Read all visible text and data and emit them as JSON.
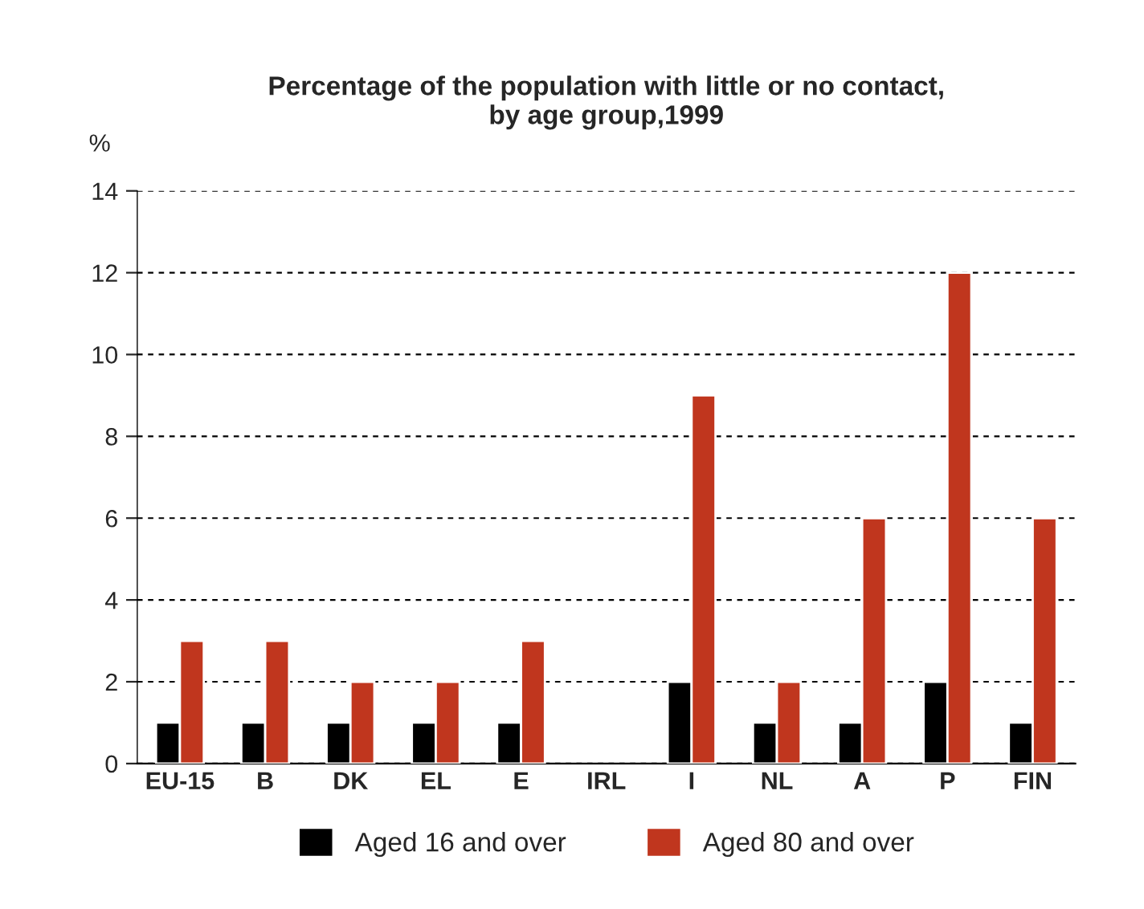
{
  "chart_data": {
    "type": "bar",
    "title": "Percentage of the population with little or no contact,\nby age group,1999",
    "ylabel": "%",
    "categories": [
      "EU-15",
      "B",
      "DK",
      "EL",
      "E",
      "IRL",
      "I",
      "NL",
      "A",
      "P",
      "FIN"
    ],
    "series": [
      {
        "name": "Aged 16 and over",
        "color": "#000000",
        "values": [
          1,
          1,
          1,
          1,
          1,
          null,
          2,
          1,
          1,
          2,
          1
        ]
      },
      {
        "name": "Aged 80 and over",
        "color": "#c0361e",
        "values": [
          3,
          3,
          2,
          2,
          3,
          null,
          9,
          2,
          6,
          12,
          6
        ]
      }
    ],
    "ylim": [
      0,
      14
    ],
    "yticks": [
      0,
      2,
      4,
      6,
      8,
      10,
      12,
      14
    ],
    "grid": "y",
    "legend": "bottom"
  }
}
